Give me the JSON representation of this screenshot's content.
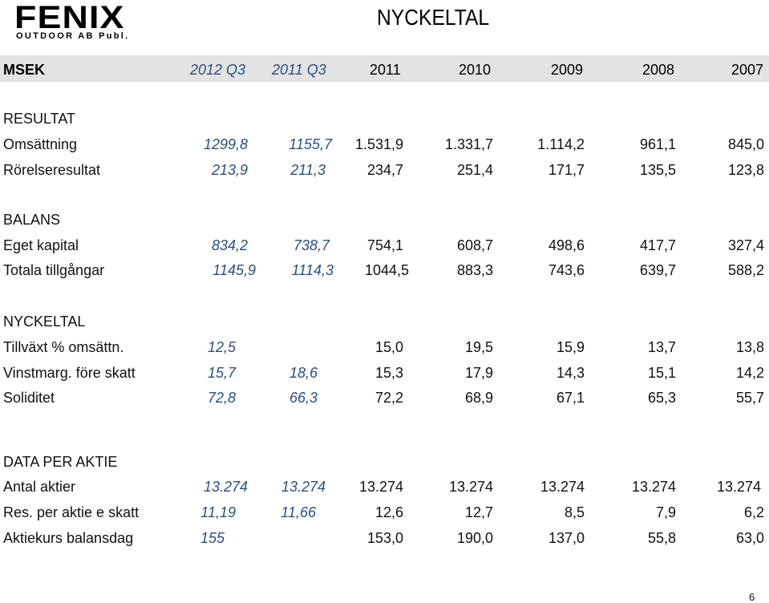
{
  "logo": {
    "name": "FENIX",
    "subtitle": "OUTDOOR AB Publ."
  },
  "title": "NYCKELTAL",
  "header": [
    "MSEK",
    "2012 Q3",
    "2011 Q3",
    "2011",
    "2010",
    "2009",
    "2008",
    "2007"
  ],
  "sections": {
    "resultat": "RESULTAT",
    "balans": "BALANS",
    "nyckeltal": "NYCKELTAL",
    "data_per_aktie": "DATA PER AKTIE"
  },
  "rows": {
    "omsattning": {
      "label": "Omsättning",
      "values": [
        "1299,8",
        "1155,7",
        "1.531,9",
        "1.331,7",
        "1.114,2",
        "961,1",
        "845,0"
      ]
    },
    "rorelseresultat": {
      "label": "Rörelseresultat",
      "values": [
        "213,9",
        "211,3",
        "234,7",
        "251,4",
        "171,7",
        "135,5",
        "123,8"
      ]
    },
    "eget_kapital": {
      "label": "Eget kapital",
      "values": [
        "834,2",
        "738,7",
        "754,1",
        "608,7",
        "498,6",
        "417,7",
        "327,4"
      ]
    },
    "totala_tillgangar": {
      "label": "Totala tillgångar",
      "values": [
        "1145,9",
        "1114,3",
        "1044,5",
        "883,3",
        "743,6",
        "639,7",
        "588,2"
      ]
    },
    "tillvaxt": {
      "label": "Tillväxt % omsättn.",
      "values": [
        "12,5",
        "",
        "15,0",
        "19,5",
        "15,9",
        "13,7",
        "13,8"
      ]
    },
    "vinstmarg": {
      "label": "Vinstmarg. före skatt",
      "values": [
        "15,7",
        "18,6",
        "15,3",
        "17,9",
        "14,3",
        "15,1",
        "14,2"
      ]
    },
    "soliditet": {
      "label": "Soliditet",
      "values": [
        "72,8",
        "66,3",
        "72,2",
        "68,9",
        "67,1",
        "65,3",
        "55,7"
      ]
    },
    "antal_aktier": {
      "label": "Antal aktier",
      "values": [
        "13.274",
        "13.274",
        "13.274",
        "13.274",
        "13.274",
        "13.274",
        "13.274"
      ]
    },
    "res_per_aktie": {
      "label": "Res. per aktie e skatt",
      "values": [
        "11,19",
        "11,66",
        "12,6",
        "12,7",
        "8,5",
        "7,9",
        "6,2"
      ]
    },
    "aktiekurs": {
      "label": "Aktiekurs balansdag",
      "values": [
        "155",
        "",
        "153,0",
        "190,0",
        "137,0",
        "55,8",
        "63,0"
      ]
    }
  },
  "page_number": "6",
  "colors": {
    "header_bg": "#e3e3e3",
    "quarter_text": "#2c4f7c"
  }
}
